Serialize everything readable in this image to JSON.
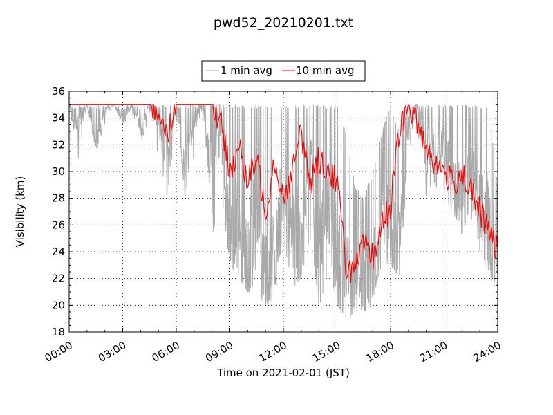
{
  "chart_data": {
    "type": "line",
    "title": "pwd52_20210201.txt",
    "xlabel": "Time on 2021-02-01 (JST)",
    "ylabel": "Visibility (km)",
    "xlim": [
      "00:00",
      "24:00"
    ],
    "ylim": [
      18,
      36
    ],
    "x_ticks": [
      "00:00",
      "03:00",
      "06:00",
      "09:00",
      "12:00",
      "15:00",
      "18:00",
      "21:00",
      "24:00"
    ],
    "y_ticks": [
      "18",
      "20",
      "22",
      "24",
      "26",
      "28",
      "30",
      "32",
      "34",
      "36"
    ],
    "grid": true,
    "legend_position": "top-center",
    "series": [
      {
        "name": "1 min avg",
        "color": "#a9a9a9",
        "x": [
          "00:00",
          "00:30",
          "01:00",
          "01:30",
          "02:00",
          "02:30",
          "03:00",
          "03:30",
          "04:00",
          "04:30",
          "05:00",
          "05:30",
          "06:00",
          "06:30",
          "07:00",
          "07:30",
          "08:00",
          "08:30",
          "09:00",
          "09:30",
          "10:00",
          "10:30",
          "11:00",
          "11:30",
          "12:00",
          "12:30",
          "13:00",
          "13:30",
          "14:00",
          "14:30",
          "15:00",
          "15:30",
          "16:00",
          "16:30",
          "17:00",
          "17:30",
          "18:00",
          "18:30",
          "19:00",
          "19:30",
          "20:00",
          "20:30",
          "21:00",
          "21:30",
          "22:00",
          "22:30",
          "23:00",
          "23:30",
          "24:00"
        ],
        "values": [
          35,
          33.5,
          35,
          32,
          34.5,
          35,
          34,
          35,
          33,
          35,
          34,
          31,
          35,
          30,
          34,
          35,
          29,
          34,
          24,
          26,
          23,
          27,
          21,
          23,
          29,
          27,
          24,
          31,
          25,
          27,
          24,
          22,
          20,
          21,
          22,
          27,
          25,
          24,
          33,
          35,
          31,
          32,
          31,
          29,
          28,
          30,
          27,
          26,
          23
        ],
        "min": [
          35,
          30.5,
          35,
          31.5,
          33.5,
          35,
          33,
          34.5,
          32,
          34,
          31,
          28,
          34,
          28,
          31,
          33,
          25,
          28,
          23,
          22,
          21,
          21,
          20,
          20.5,
          25,
          21,
          22,
          25,
          19.5,
          22,
          20,
          18.5,
          19.5,
          19.5,
          20,
          23,
          23,
          22,
          31,
          33,
          28,
          29,
          27,
          27,
          25,
          26.5,
          24,
          22,
          21.5
        ],
        "max": [
          35,
          35,
          35,
          35,
          35,
          35,
          35,
          35,
          35,
          35,
          35,
          35,
          35,
          35,
          35,
          35,
          35,
          35,
          35,
          35,
          35,
          35,
          35,
          35,
          35,
          35,
          35,
          35,
          35,
          35,
          35,
          33,
          29,
          28,
          30,
          33,
          35,
          33,
          35,
          35,
          35,
          35,
          35,
          35,
          35,
          35,
          35,
          35,
          29
        ]
      },
      {
        "name": "10 min avg",
        "color": "#ff0000",
        "x": [
          "00:00",
          "00:30",
          "01:00",
          "01:30",
          "02:00",
          "02:30",
          "03:00",
          "03:30",
          "04:00",
          "04:30",
          "05:00",
          "05:30",
          "06:00",
          "06:30",
          "07:00",
          "07:30",
          "08:00",
          "08:30",
          "09:00",
          "09:30",
          "10:00",
          "10:30",
          "11:00",
          "11:30",
          "12:00",
          "12:30",
          "13:00",
          "13:30",
          "14:00",
          "14:30",
          "15:00",
          "15:30",
          "16:00",
          "16:30",
          "17:00",
          "17:30",
          "18:00",
          "18:30",
          "19:00",
          "19:30",
          "20:00",
          "20:30",
          "21:00",
          "21:30",
          "22:00",
          "22:30",
          "23:00",
          "23:30",
          "24:00"
        ],
        "values": [
          35,
          35,
          35,
          35,
          35,
          35,
          35,
          35,
          35,
          35,
          34.5,
          33,
          35,
          35,
          35,
          35,
          35,
          33.5,
          30,
          32,
          29,
          31,
          27,
          31,
          28,
          30,
          33,
          29,
          31,
          30,
          29.5,
          23,
          22.5,
          24.5,
          23.5,
          26,
          27.5,
          33,
          35,
          33.5,
          32,
          30.5,
          30,
          29,
          30,
          28.5,
          27,
          25.5,
          24
        ]
      }
    ]
  }
}
